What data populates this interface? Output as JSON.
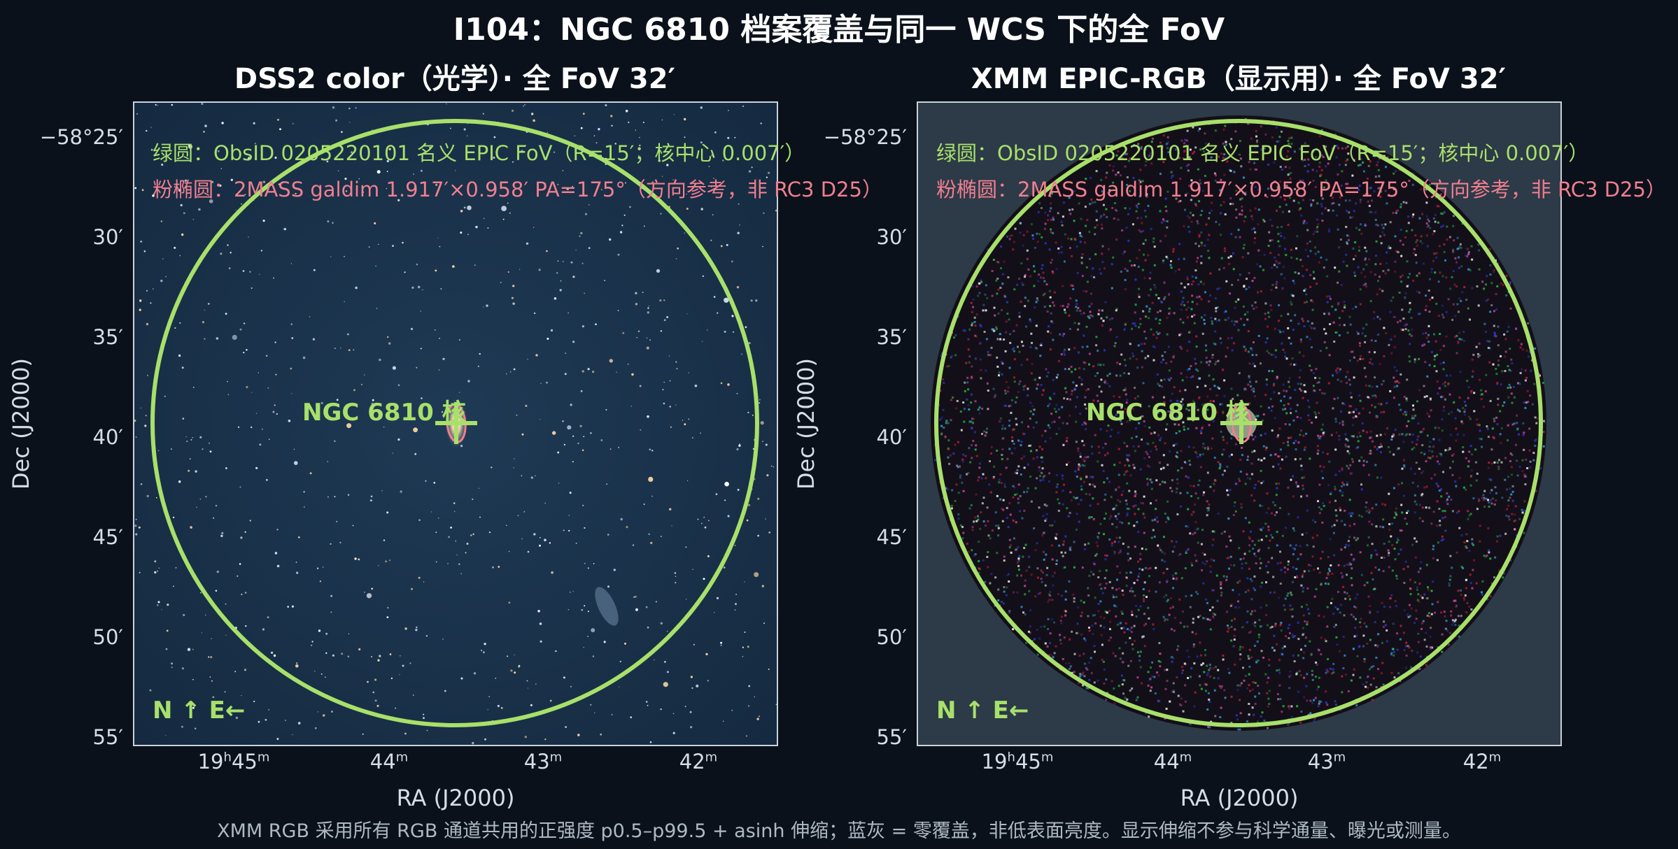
{
  "title": "I104：NGC 6810 档案覆盖与同一 WCS 下的全 FoV",
  "panels": {
    "left": {
      "title": "DSS2 color（光学）· 全 FoV 32′",
      "legend_green": "绿圆：ObsID 0205220101 名义 EPIC FoV（R=15′；核中心 0.007′）",
      "legend_pink": "粉椭圆：2MASS galdim 1.917′×0.958′ PA=175°（方向参考，非 RC3 D25）",
      "nucleus_label": "NGC 6810 核",
      "compass": "N ↑  E←"
    },
    "right": {
      "title": "XMM EPIC-RGB（显示用）· 全 FoV 32′",
      "legend_green": "绿圆：ObsID 0205220101 名义 EPIC FoV（R=15′；核中心 0.007′）",
      "legend_pink": "粉椭圆：2MASS galdim 1.917′×0.958′ PA=175°（方向参考，非 RC3 D25）",
      "nucleus_label": "NGC 6810 核",
      "compass": "N ↑  E←"
    }
  },
  "axes": {
    "ylabel": "Dec (J2000)",
    "xlabel": "RA (J2000)",
    "yticks": [
      "−58°25′",
      "30′",
      "35′",
      "40′",
      "45′",
      "50′",
      "55′"
    ],
    "xticks": [
      {
        "h": "19",
        "m": "45",
        "label_main": "19",
        "sup1": "h",
        "val": "45",
        "sup2": "m"
      },
      {
        "val": "44",
        "sup2": "m"
      },
      {
        "val": "43",
        "sup2": "m"
      },
      {
        "val": "42",
        "sup2": "m"
      }
    ]
  },
  "colors": {
    "background": "#0a111a",
    "fov_circle": "#a8e06a",
    "ellipse": "#f07f8f",
    "optical_sky": "#1b3550",
    "xray_empty": "#2d3a48"
  },
  "footnote": "XMM RGB 采用所有 RGB 通道共用的正强度 p0.5–p99.5 + asinh 伸缩；蓝灰 = 零覆盖，非低表面亮度。显示伸缩不参与科学通量、曝光或测量。"
}
